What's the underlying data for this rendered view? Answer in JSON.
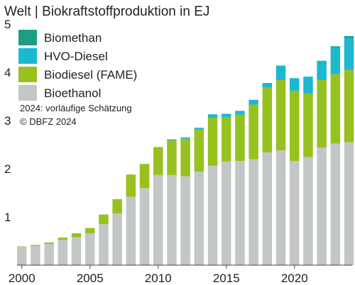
{
  "chart_data": {
    "type": "bar",
    "stacked": true,
    "title": "Welt | Biokraftstoffproduktion in EJ",
    "categories": [
      "2000",
      "2001",
      "2002",
      "2003",
      "2004",
      "2005",
      "2006",
      "2007",
      "2008",
      "2009",
      "2010",
      "2011",
      "2012",
      "2013",
      "2014",
      "2015",
      "2016",
      "2017",
      "2018",
      "2019",
      "2020",
      "2021",
      "2022",
      "2023",
      "2024"
    ],
    "x_tick_labels": [
      "2000",
      "2005",
      "2010",
      "2015",
      "2020"
    ],
    "ylim": [
      0,
      5
    ],
    "y_ticks": [
      1,
      2,
      3,
      4,
      5
    ],
    "series": [
      {
        "name": "Bioethanol",
        "color": "#c3c6c6",
        "values": [
          0.38,
          0.4,
          0.44,
          0.52,
          0.58,
          0.66,
          0.85,
          1.07,
          1.42,
          1.6,
          1.87,
          1.87,
          1.84,
          1.94,
          2.06,
          2.15,
          2.16,
          2.2,
          2.34,
          2.38,
          2.16,
          2.24,
          2.44,
          2.52,
          2.55
        ]
      },
      {
        "name": "Biodiesel (FAME)",
        "color": "#96c11f",
        "values": [
          0.01,
          0.02,
          0.03,
          0.05,
          0.08,
          0.11,
          0.2,
          0.3,
          0.46,
          0.5,
          0.58,
          0.72,
          0.78,
          0.87,
          1.0,
          0.92,
          0.96,
          1.13,
          1.34,
          1.46,
          1.46,
          1.32,
          1.4,
          1.44,
          1.5
        ]
      },
      {
        "name": "HVO-Diesel",
        "color": "#1cb8d0",
        "values": [
          0,
          0,
          0,
          0,
          0,
          0,
          0,
          0,
          0,
          0,
          0,
          0.02,
          0.03,
          0.04,
          0.07,
          0.07,
          0.08,
          0.1,
          0.1,
          0.3,
          0.26,
          0.35,
          0.4,
          0.55,
          0.66
        ]
      },
      {
        "name": "Biomethan",
        "color": "#1a9e84",
        "values": [
          0,
          0,
          0,
          0,
          0,
          0,
          0,
          0,
          0,
          0,
          0,
          0,
          0,
          0,
          0,
          0,
          0,
          0,
          0,
          0,
          0,
          0,
          0,
          0.03,
          0.04
        ]
      }
    ],
    "legend_order": [
      "Biomethan",
      "HVO-Diesel",
      "Biodiesel (FAME)",
      "Bioethanol"
    ],
    "legend_position": "top-left",
    "notes": [
      "2024: vorläufige Schätzung",
      "© DBFZ 2024"
    ],
    "grid": false
  }
}
